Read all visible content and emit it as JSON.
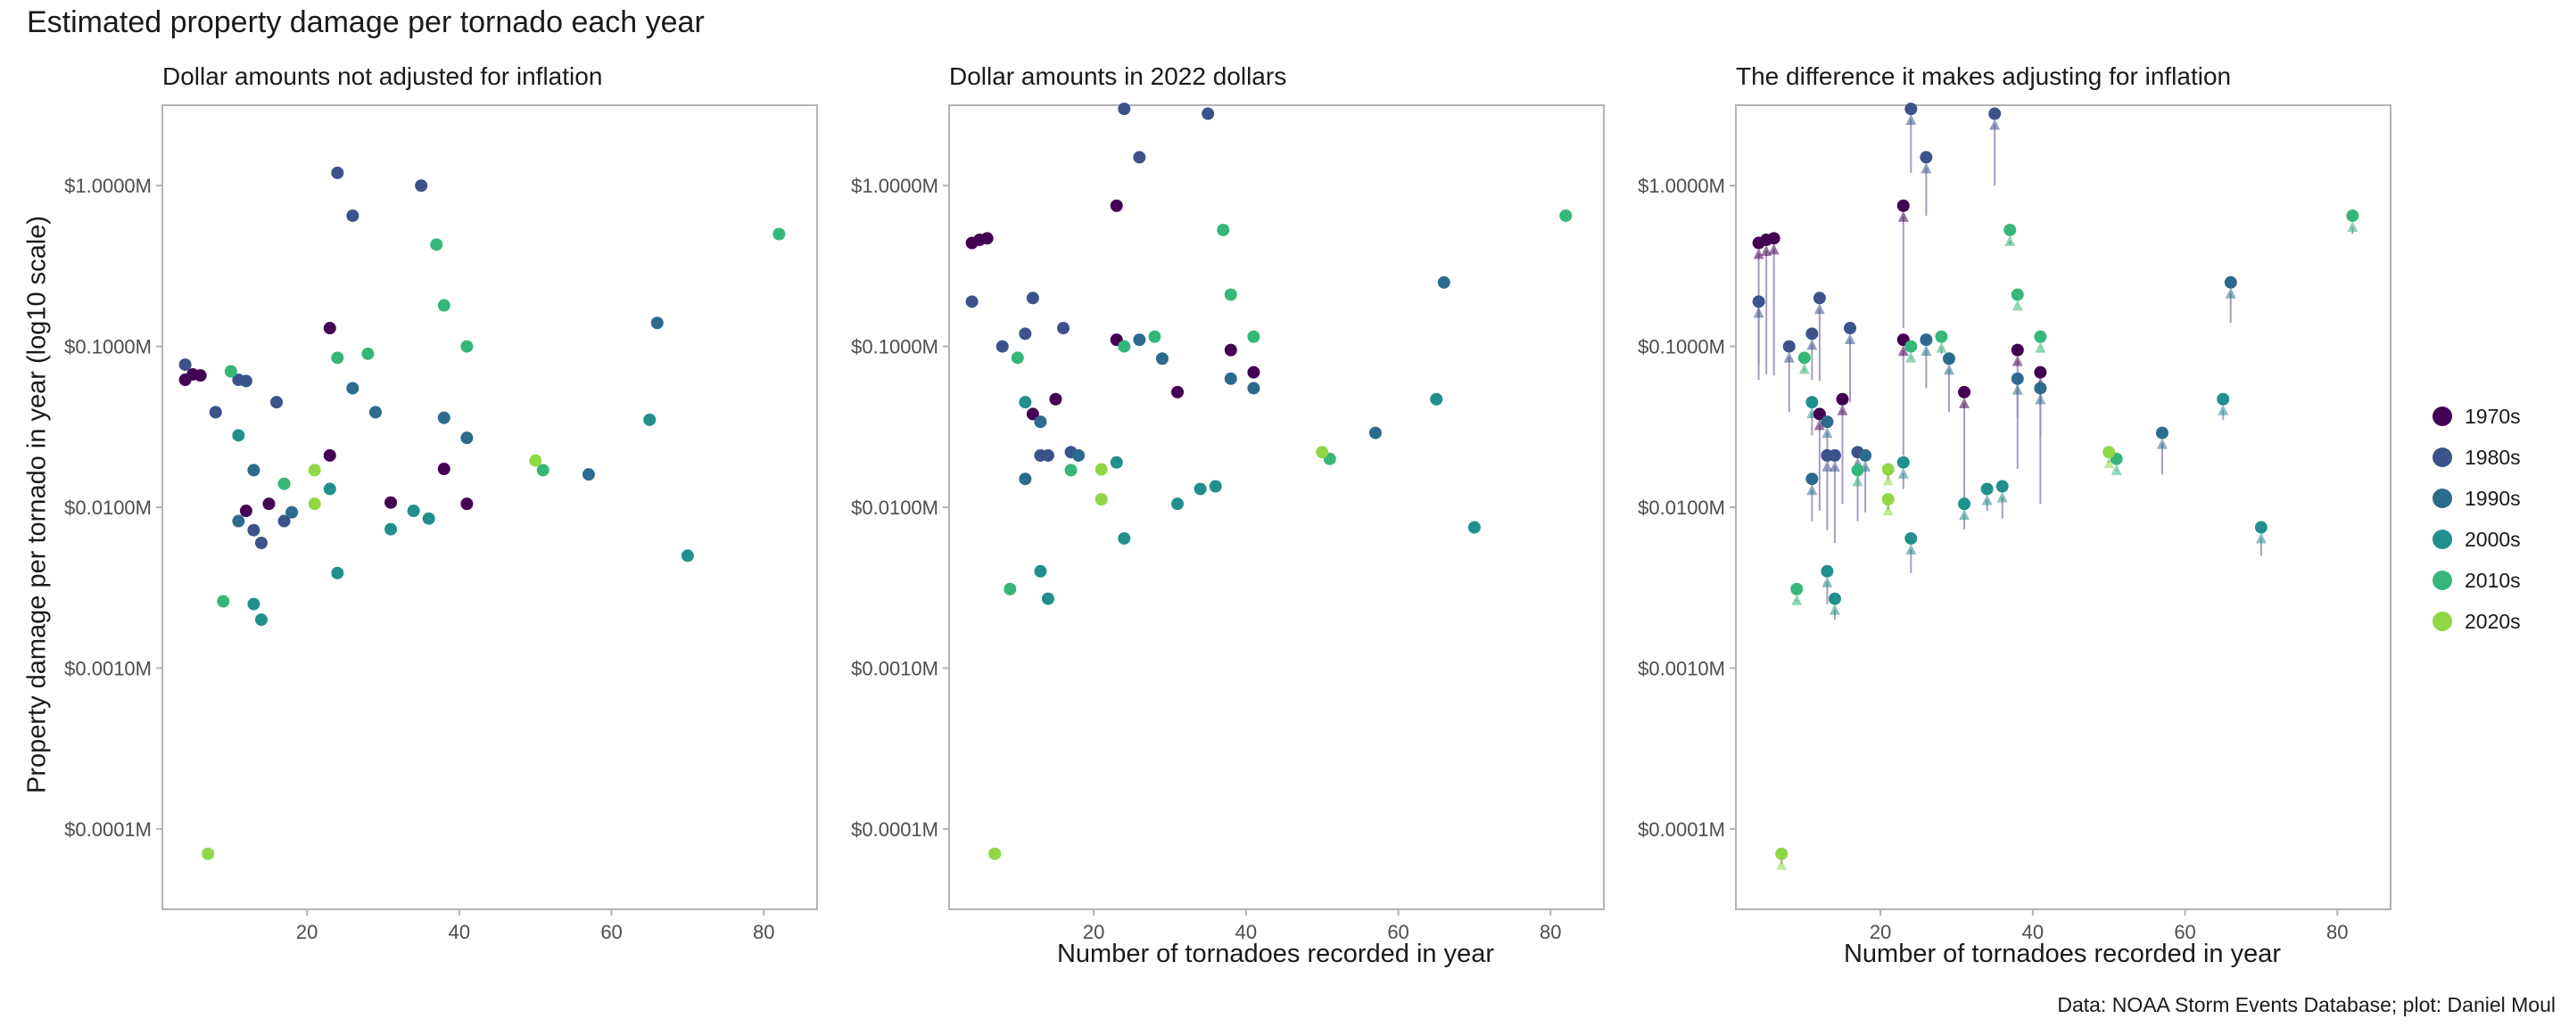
{
  "title": "Estimated property damage per tornado each year",
  "caption": "Data: NOAA Storm Events Database; plot: Daniel Moul",
  "ylabel": "Property damage per tornado in year (log10 scale)",
  "xlabel": "Number of tornadoes recorded in year",
  "colors": {
    "1970s": "#440154",
    "1980s": "#3b528b",
    "1990s": "#2c6b8e",
    "2000s": "#21908c",
    "2010s": "#35b779",
    "2020s": "#8fd744",
    "tie": "#9a8aba",
    "frame": "#b3b3b3"
  },
  "legend": [
    "1970s",
    "1980s",
    "1990s",
    "2000s",
    "2010s",
    "2020s"
  ],
  "chart_data": [
    {
      "type": "scatter",
      "title": "Dollar amounts not adjusted for inflation",
      "xlabel": "",
      "ylabel": "Property damage per tornado in year (log10 scale)",
      "xlim": [
        1,
        87
      ],
      "ylim_log10_musd": [
        -4.5,
        0.5
      ],
      "x_ticks": [
        20,
        40,
        60,
        80
      ],
      "y_ticks": [
        "$1.0000M",
        "$0.1000M",
        "$0.0100M",
        "$0.0010M",
        "$0.0001M"
      ],
      "grid": false,
      "series": [
        {
          "name": "1970s",
          "x": [
            4,
            5,
            6,
            12,
            15,
            23,
            23,
            31,
            38,
            41
          ],
          "y": [
            0.062,
            0.067,
            0.066,
            0.0095,
            0.0105,
            0.13,
            0.021,
            0.0107,
            0.0173,
            0.0105
          ]
        },
        {
          "name": "1980s",
          "x": [
            4,
            8,
            11,
            12,
            13,
            14,
            16,
            17,
            24,
            26,
            35
          ],
          "y": [
            0.077,
            0.039,
            0.062,
            0.061,
            0.0072,
            0.006,
            0.045,
            0.0082,
            1.2,
            0.65,
            1.0
          ]
        },
        {
          "name": "1990s",
          "x": [
            11,
            13,
            18,
            26,
            29,
            38,
            41,
            57,
            66
          ],
          "y": [
            0.0082,
            0.017,
            0.0093,
            0.055,
            0.039,
            0.036,
            0.027,
            0.016,
            0.14
          ]
        },
        {
          "name": "2000s",
          "x": [
            11,
            13,
            14,
            23,
            24,
            31,
            34,
            36,
            65,
            70
          ],
          "y": [
            0.028,
            0.0025,
            0.002,
            0.013,
            0.0039,
            0.0073,
            0.0095,
            0.0085,
            0.035,
            0.005
          ]
        },
        {
          "name": "2010s",
          "x": [
            9,
            10,
            17,
            24,
            28,
            37,
            38,
            41,
            51,
            82
          ],
          "y": [
            0.0026,
            0.07,
            0.014,
            0.085,
            0.09,
            0.43,
            0.18,
            0.1,
            0.017,
            0.5
          ]
        },
        {
          "name": "2020s",
          "x": [
            7,
            21,
            21,
            50
          ],
          "y": [
            7e-05,
            0.0105,
            0.017,
            0.0195
          ]
        }
      ]
    },
    {
      "type": "scatter",
      "title": "Dollar amounts in 2022 dollars",
      "xlabel": "Number of tornadoes recorded in year",
      "ylabel": "",
      "xlim": [
        1,
        87
      ],
      "ylim_log10_musd": [
        -4.5,
        0.5
      ],
      "x_ticks": [
        20,
        40,
        60,
        80
      ],
      "y_ticks": [
        "$1.0000M",
        "$0.1000M",
        "$0.0100M",
        "$0.0010M",
        "$0.0001M"
      ],
      "grid": false,
      "series": [
        {
          "name": "1970s",
          "x": [
            4,
            5,
            6,
            12,
            15,
            23,
            23,
            31,
            38,
            41
          ],
          "y": [
            0.44,
            0.46,
            0.47,
            0.038,
            0.047,
            0.75,
            0.11,
            0.052,
            0.095,
            0.069
          ]
        },
        {
          "name": "1980s",
          "x": [
            4,
            8,
            11,
            12,
            13,
            14,
            16,
            17,
            24,
            26,
            35
          ],
          "y": [
            0.19,
            0.1,
            0.12,
            0.2,
            0.021,
            0.021,
            0.13,
            0.022,
            3.0,
            1.5,
            2.8
          ]
        },
        {
          "name": "1990s",
          "x": [
            11,
            13,
            18,
            26,
            29,
            38,
            41,
            57,
            66
          ],
          "y": [
            0.015,
            0.034,
            0.021,
            0.11,
            0.084,
            0.063,
            0.055,
            0.029,
            0.25
          ]
        },
        {
          "name": "2000s",
          "x": [
            11,
            13,
            14,
            23,
            24,
            31,
            34,
            36,
            65,
            70
          ],
          "y": [
            0.045,
            0.004,
            0.0027,
            0.019,
            0.0064,
            0.0105,
            0.013,
            0.0135,
            0.047,
            0.0075
          ]
        },
        {
          "name": "2010s",
          "x": [
            9,
            10,
            17,
            24,
            28,
            37,
            38,
            41,
            51,
            82
          ],
          "y": [
            0.0031,
            0.085,
            0.017,
            0.1,
            0.115,
            0.53,
            0.21,
            0.115,
            0.02,
            0.65
          ]
        },
        {
          "name": "2020s",
          "x": [
            7,
            21,
            21,
            50
          ],
          "y": [
            7e-05,
            0.0112,
            0.0172,
            0.022
          ]
        }
      ]
    },
    {
      "type": "scatter",
      "title": "The difference it makes adjusting for inflation",
      "xlabel": "Number of tornadoes recorded in year",
      "ylabel": "",
      "xlim": [
        1,
        87
      ],
      "ylim_log10_musd": [
        -4.5,
        0.5
      ],
      "x_ticks": [
        20,
        40,
        60,
        80
      ],
      "y_ticks": [
        "$1.0000M",
        "$0.1000M",
        "$0.0100M",
        "$0.0010M",
        "$0.0001M"
      ],
      "grid": false,
      "note": "arrows from unadjusted value (panel 1) to inflation-adjusted value (panel 2)",
      "series": [
        {
          "name": "1970s",
          "x": [
            4,
            5,
            6,
            12,
            15,
            23,
            23,
            31,
            38,
            41
          ],
          "y": [
            0.44,
            0.46,
            0.47,
            0.038,
            0.047,
            0.75,
            0.11,
            0.052,
            0.095,
            0.069
          ]
        },
        {
          "name": "1980s",
          "x": [
            4,
            8,
            11,
            12,
            13,
            14,
            16,
            17,
            24,
            26,
            35
          ],
          "y": [
            0.19,
            0.1,
            0.12,
            0.2,
            0.021,
            0.021,
            0.13,
            0.022,
            3.0,
            1.5,
            2.8
          ]
        },
        {
          "name": "1990s",
          "x": [
            11,
            13,
            18,
            26,
            29,
            38,
            41,
            57,
            66
          ],
          "y": [
            0.015,
            0.034,
            0.021,
            0.11,
            0.084,
            0.063,
            0.055,
            0.029,
            0.25
          ]
        },
        {
          "name": "2000s",
          "x": [
            11,
            13,
            14,
            23,
            24,
            31,
            34,
            36,
            65,
            70
          ],
          "y": [
            0.045,
            0.004,
            0.0027,
            0.019,
            0.0064,
            0.0105,
            0.013,
            0.0135,
            0.047,
            0.0075
          ]
        },
        {
          "name": "2010s",
          "x": [
            9,
            10,
            17,
            24,
            28,
            37,
            38,
            41,
            51,
            82
          ],
          "y": [
            0.0031,
            0.085,
            0.017,
            0.1,
            0.115,
            0.53,
            0.21,
            0.115,
            0.02,
            0.65
          ]
        },
        {
          "name": "2020s",
          "x": [
            7,
            21,
            21,
            50
          ],
          "y": [
            7e-05,
            0.0112,
            0.0172,
            0.022
          ]
        }
      ]
    }
  ]
}
